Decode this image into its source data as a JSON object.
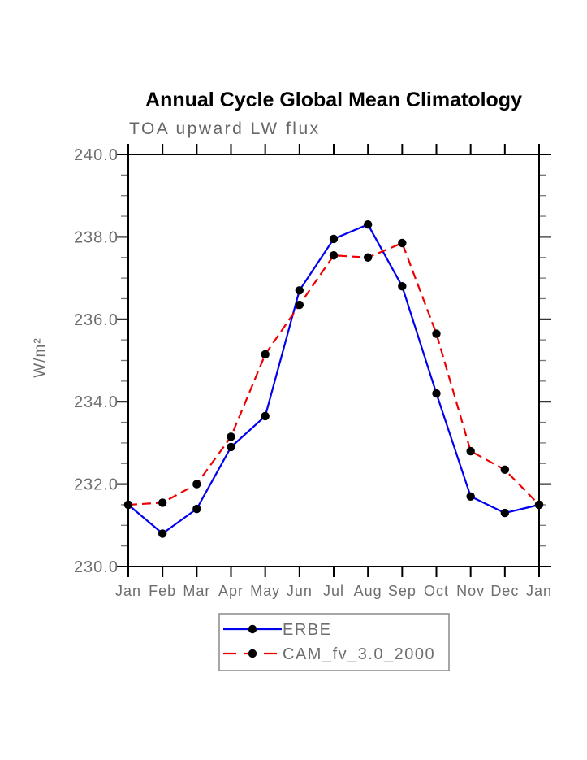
{
  "chart_data": {
    "type": "line",
    "title": "Annual Cycle Global Mean Climatology",
    "subtitle": "TOA upward LW flux",
    "ylabel": "W/m²",
    "xlabel": "",
    "categories": [
      "Jan",
      "Feb",
      "Mar",
      "Apr",
      "May",
      "Jun",
      "Jul",
      "Aug",
      "Sep",
      "Oct",
      "Nov",
      "Dec",
      "Jan"
    ],
    "ylim": [
      230.0,
      240.0
    ],
    "ytick_interval": 2.0,
    "ytick_minor_interval": 0.5,
    "ytick_labels": [
      "230.0",
      "232.0",
      "234.0",
      "236.0",
      "238.0",
      "240.0"
    ],
    "grid": false,
    "legend_position": "bottom-center",
    "series": [
      {
        "name": "ERBE",
        "color": "#0000ee",
        "style": "solid",
        "marker": "circle",
        "marker_color": "#000000",
        "values": [
          231.5,
          230.8,
          231.4,
          232.9,
          233.65,
          236.7,
          237.95,
          238.3,
          236.8,
          234.2,
          231.7,
          231.3,
          231.5
        ]
      },
      {
        "name": "CAM_fv_3.0_2000",
        "color": "#ee0000",
        "style": "dashed",
        "marker": "circle",
        "marker_color": "#000000",
        "values": [
          231.5,
          231.55,
          232.0,
          233.15,
          235.15,
          236.35,
          237.55,
          237.5,
          237.85,
          235.65,
          232.8,
          232.35,
          231.5
        ]
      }
    ],
    "colors": {
      "frame": "#000000",
      "minor_tick": "#777777",
      "axis_text": "#6e6e6e",
      "title_text": "#000000",
      "subtitle_text": "#666666",
      "legend_border": "#888888"
    }
  }
}
